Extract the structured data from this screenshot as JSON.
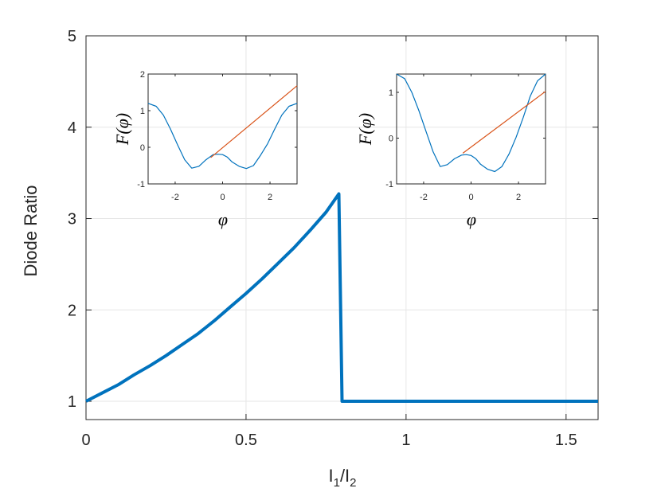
{
  "colors": {
    "main_line": "#0072BD",
    "inset_curve": "#0072BD",
    "inset_line": "#D95319",
    "axis": "#262626",
    "grid": "#E6E6E6"
  },
  "chart_data": [
    {
      "type": "line",
      "xlabel_text": "I",
      "xlabel_sub1": "1",
      "xlabel_mid": "/I",
      "xlabel_sub2": "2",
      "ylabel": "Diode Ratio",
      "xlim": [
        0,
        1.6
      ],
      "ylim": [
        0.8,
        5
      ],
      "xticks": [
        "0",
        "0.5",
        "1",
        "1.5"
      ],
      "xtick_values": [
        0,
        0.5,
        1,
        1.5
      ],
      "yticks": [
        "1",
        "2",
        "3",
        "4",
        "5"
      ],
      "ytick_values": [
        1,
        2,
        3,
        4,
        5
      ],
      "grid": true,
      "series": [
        {
          "x": [
            0,
            0.05,
            0.1,
            0.15,
            0.2,
            0.25,
            0.3,
            0.35,
            0.4,
            0.45,
            0.5,
            0.55,
            0.6,
            0.65,
            0.7,
            0.75,
            0.79,
            0.8,
            0.85,
            0.9,
            1.0,
            1.2,
            1.4,
            1.6
          ],
          "y": [
            1.0,
            1.09,
            1.18,
            1.29,
            1.39,
            1.5,
            1.62,
            1.74,
            1.88,
            2.03,
            2.18,
            2.34,
            2.51,
            2.68,
            2.87,
            3.07,
            3.27,
            1.0,
            1.0,
            1.0,
            1.0,
            1.0,
            1.0,
            1.0
          ]
        }
      ]
    },
    {
      "type": "line",
      "xlabel": "φ",
      "ylabel_text": "F(φ)",
      "xlim": [
        -3.14,
        3.14
      ],
      "ylim": [
        -1,
        2
      ],
      "xticks": [
        "-2",
        "0",
        "2"
      ],
      "xtick_values": [
        -2,
        0,
        2
      ],
      "yticks": [
        "-1",
        "0",
        "1",
        "2"
      ],
      "ytick_values": [
        -1,
        0,
        1,
        2
      ],
      "series": [
        {
          "x": [
            -3.14,
            -2.8,
            -2.5,
            -2.2,
            -1.9,
            -1.6,
            -1.3,
            -1.0,
            -0.7,
            -0.4,
            -0.2,
            0,
            0.2,
            0.4,
            0.7,
            1.0,
            1.3,
            1.6,
            1.9,
            2.2,
            2.5,
            2.8,
            3.14
          ],
          "y": [
            1.2,
            1.12,
            0.88,
            0.5,
            0.07,
            -0.34,
            -0.57,
            -0.52,
            -0.34,
            -0.2,
            -0.19,
            -0.2,
            -0.27,
            -0.4,
            -0.52,
            -0.58,
            -0.5,
            -0.22,
            0.1,
            0.5,
            0.88,
            1.12,
            1.2
          ]
        },
        {
          "x": [
            -0.5,
            3.14
          ],
          "y": [
            -0.28,
            1.68
          ]
        }
      ]
    },
    {
      "type": "line",
      "xlabel": "φ",
      "ylabel_text": "F(φ)",
      "xlim": [
        -3.14,
        3.14
      ],
      "ylim": [
        -1,
        1.4
      ],
      "xticks": [
        "-2",
        "0",
        "2"
      ],
      "xtick_values": [
        -2,
        0,
        2
      ],
      "yticks": [
        "-1",
        "0",
        "1"
      ],
      "ytick_values": [
        -1,
        0,
        1
      ],
      "series": [
        {
          "x": [
            -3.14,
            -2.8,
            -2.5,
            -2.2,
            -1.9,
            -1.6,
            -1.3,
            -1.0,
            -0.7,
            -0.4,
            -0.2,
            0,
            0.2,
            0.4,
            0.7,
            1.0,
            1.3,
            1.6,
            1.9,
            2.2,
            2.5,
            2.8,
            3.14
          ],
          "y": [
            1.4,
            1.3,
            1.0,
            0.6,
            0.15,
            -0.3,
            -0.62,
            -0.58,
            -0.45,
            -0.37,
            -0.36,
            -0.38,
            -0.45,
            -0.57,
            -0.68,
            -0.73,
            -0.62,
            -0.35,
            0.02,
            0.45,
            0.92,
            1.25,
            1.4
          ]
        },
        {
          "x": [
            -0.35,
            3.14
          ],
          "y": [
            -0.33,
            1.02
          ]
        }
      ]
    }
  ]
}
